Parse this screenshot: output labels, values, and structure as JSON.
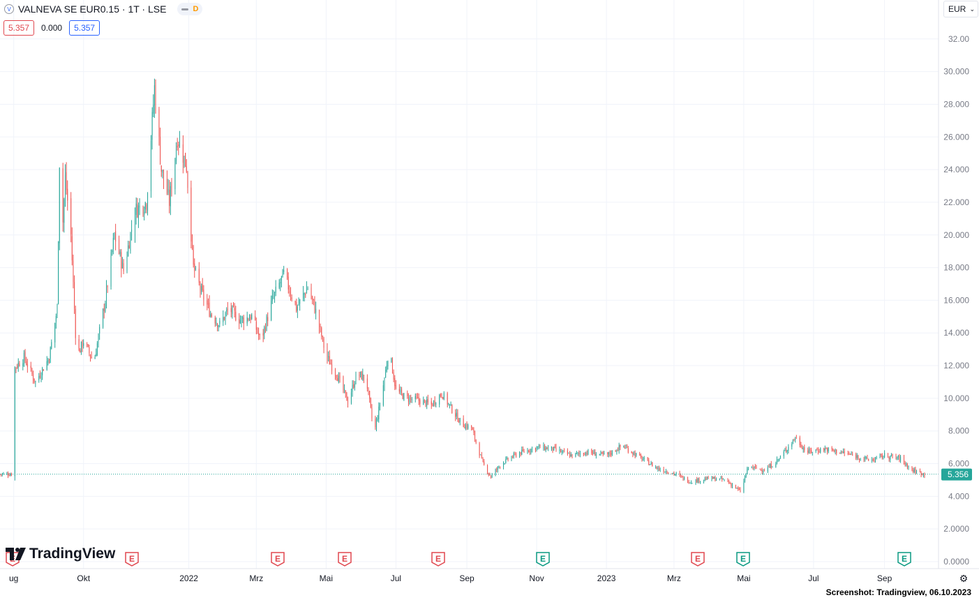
{
  "header": {
    "symbol": "VALNEVA SE EUR0.15 · 1T · LSE",
    "symbol_icon": "valneva-logo-icon",
    "badge_letter": "D",
    "open_value": "5.357",
    "change_value": "0.000",
    "close_value": "5.357"
  },
  "currency_selector": {
    "label": "EUR",
    "icon": "chevron-down-icon"
  },
  "logo_text": "TradingView",
  "credit": "Screenshot: Tradingview, 06.10.2023",
  "colors": {
    "up": "#26a69a",
    "down": "#ef5350",
    "grid": "#f0f3fa",
    "price_line": "#26a69a",
    "earn_red": "#e0474f",
    "earn_green": "#089981",
    "axis_text": "#787b86"
  },
  "chart_data": {
    "type": "candlestick",
    "title": "",
    "ylim": [
      0,
      32.8
    ],
    "y_ticks": [
      "32.00",
      "30.000",
      "28.000",
      "26.000",
      "24.000",
      "22.000",
      "20.000",
      "18.000",
      "16.000",
      "14.000",
      "12.000",
      "10.000",
      "8.000",
      "6.000",
      "4.000",
      "2.0000",
      "0.0000"
    ],
    "x_ticks": [
      "ug",
      "Okt",
      "2022",
      "Mrz",
      "Mai",
      "Jul",
      "Sep",
      "Nov",
      "2023",
      "Mrz",
      "Mai",
      "Jul",
      "Sep"
    ],
    "last_price": "5.356",
    "last_price_value": 5.356,
    "gridlines": true,
    "earnings_markers": [
      {
        "label": "E",
        "status": "past"
      },
      {
        "label": "E",
        "status": "past"
      },
      {
        "label": "E",
        "status": "past"
      },
      {
        "label": "E",
        "status": "past"
      },
      {
        "label": "E",
        "status": "past"
      },
      {
        "label": "E",
        "status": "beat"
      },
      {
        "label": "E",
        "status": "past"
      },
      {
        "label": "E",
        "status": "beat"
      },
      {
        "label": "E",
        "status": "beat"
      }
    ],
    "price_path": [
      {
        "x": "2021-08-01",
        "close": 11.8
      },
      {
        "x": "2021-08-10",
        "close": 12.5
      },
      {
        "x": "2021-08-20",
        "close": 11.0
      },
      {
        "x": "2021-09-01",
        "close": 12.5
      },
      {
        "x": "2021-09-08",
        "close": 15.5
      },
      {
        "x": "2021-09-10",
        "close": 24.5
      },
      {
        "x": "2021-09-12",
        "close": 19.5
      },
      {
        "x": "2021-09-15",
        "close": 23.5
      },
      {
        "x": "2021-09-20",
        "close": 20.0
      },
      {
        "x": "2021-09-25",
        "close": 12.5
      },
      {
        "x": "2021-10-01",
        "close": 13.5
      },
      {
        "x": "2021-10-10",
        "close": 12.2
      },
      {
        "x": "2021-10-20",
        "close": 16.0
      },
      {
        "x": "2021-10-28",
        "close": 20.0
      },
      {
        "x": "2021-11-05",
        "close": 17.8
      },
      {
        "x": "2021-11-15",
        "close": 21.5
      },
      {
        "x": "2021-11-25",
        "close": 22.0
      },
      {
        "x": "2021-12-02",
        "close": 29.0
      },
      {
        "x": "2021-12-08",
        "close": 24.0
      },
      {
        "x": "2021-12-15",
        "close": 22.0
      },
      {
        "x": "2021-12-22",
        "close": 26.0
      },
      {
        "x": "2021-12-30",
        "close": 24.2
      },
      {
        "x": "2022-01-05",
        "close": 18.0
      },
      {
        "x": "2022-01-12",
        "close": 16.5
      },
      {
        "x": "2022-01-20",
        "close": 15.2
      },
      {
        "x": "2022-01-28",
        "close": 14.5
      },
      {
        "x": "2022-02-05",
        "close": 15.5
      },
      {
        "x": "2022-02-15",
        "close": 14.8
      },
      {
        "x": "2022-02-25",
        "close": 15.0
      },
      {
        "x": "2022-03-05",
        "close": 13.5
      },
      {
        "x": "2022-03-15",
        "close": 16.0
      },
      {
        "x": "2022-03-25",
        "close": 17.6
      },
      {
        "x": "2022-04-05",
        "close": 15.5
      },
      {
        "x": "2022-04-15",
        "close": 16.8
      },
      {
        "x": "2022-04-22",
        "close": 15.3
      },
      {
        "x": "2022-05-01",
        "close": 12.6
      },
      {
        "x": "2022-05-10",
        "close": 11.5
      },
      {
        "x": "2022-05-20",
        "close": 9.8
      },
      {
        "x": "2022-05-28",
        "close": 11.5
      },
      {
        "x": "2022-06-05",
        "close": 11.2
      },
      {
        "x": "2022-06-12",
        "close": 7.8
      },
      {
        "x": "2022-06-20",
        "close": 10.8
      },
      {
        "x": "2022-06-25",
        "close": 13.0
      },
      {
        "x": "2022-07-01",
        "close": 10.5
      },
      {
        "x": "2022-07-10",
        "close": 10.0
      },
      {
        "x": "2022-07-20",
        "close": 9.9
      },
      {
        "x": "2022-08-01",
        "close": 9.6
      },
      {
        "x": "2022-08-10",
        "close": 10.3
      },
      {
        "x": "2022-08-20",
        "close": 9.2
      },
      {
        "x": "2022-08-28",
        "close": 8.4
      },
      {
        "x": "2022-09-05",
        "close": 8.2
      },
      {
        "x": "2022-09-15",
        "close": 6.0
      },
      {
        "x": "2022-09-22",
        "close": 5.2
      },
      {
        "x": "2022-10-01",
        "close": 6.0
      },
      {
        "x": "2022-10-15",
        "close": 6.6
      },
      {
        "x": "2022-11-01",
        "close": 7.0
      },
      {
        "x": "2022-11-15",
        "close": 6.9
      },
      {
        "x": "2022-12-01",
        "close": 6.5
      },
      {
        "x": "2022-12-15",
        "close": 6.7
      },
      {
        "x": "2023-01-01",
        "close": 6.5
      },
      {
        "x": "2023-01-15",
        "close": 7.1
      },
      {
        "x": "2023-02-01",
        "close": 6.3
      },
      {
        "x": "2023-02-15",
        "close": 5.7
      },
      {
        "x": "2023-03-01",
        "close": 5.4
      },
      {
        "x": "2023-03-15",
        "close": 4.9
      },
      {
        "x": "2023-04-01",
        "close": 5.1
      },
      {
        "x": "2023-04-15",
        "close": 5.0
      },
      {
        "x": "2023-04-28",
        "close": 4.3
      },
      {
        "x": "2023-05-05",
        "close": 5.8
      },
      {
        "x": "2023-05-20",
        "close": 5.6
      },
      {
        "x": "2023-06-01",
        "close": 6.3
      },
      {
        "x": "2023-06-15",
        "close": 7.6
      },
      {
        "x": "2023-06-25",
        "close": 6.7
      },
      {
        "x": "2023-07-10",
        "close": 6.9
      },
      {
        "x": "2023-07-25",
        "close": 6.7
      },
      {
        "x": "2023-08-10",
        "close": 6.4
      },
      {
        "x": "2023-08-20",
        "close": 6.2
      },
      {
        "x": "2023-09-01",
        "close": 6.5
      },
      {
        "x": "2023-09-15",
        "close": 6.3
      },
      {
        "x": "2023-09-25",
        "close": 5.6
      },
      {
        "x": "2023-10-06",
        "close": 5.36
      }
    ]
  }
}
